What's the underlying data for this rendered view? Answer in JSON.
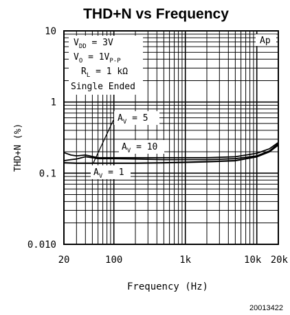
{
  "chart_data": {
    "type": "line",
    "title": "THD+N vs Frequency",
    "xlabel": "Frequency (Hz)",
    "ylabel": "THD+N (%)",
    "x_scale": "log",
    "y_scale": "log",
    "xlim": [
      20,
      20000
    ],
    "ylim": [
      0.01,
      10
    ],
    "grid": true,
    "x_tick_labels": [
      {
        "value": 20,
        "label": "20"
      },
      {
        "value": 100,
        "label": "100"
      },
      {
        "value": 1000,
        "label": "1k"
      },
      {
        "value": 10000,
        "label": "10k"
      },
      {
        "value": 20000,
        "label": "20k"
      }
    ],
    "y_tick_labels": [
      {
        "value": 10,
        "label": "10"
      },
      {
        "value": 1,
        "label": "1"
      },
      {
        "value": 0.1,
        "label": "0.1"
      },
      {
        "value": 0.01,
        "label": "0.010"
      }
    ],
    "conditions": {
      "vdd": "V",
      "vdd_sub": "DD",
      "vdd_value": " = 3V",
      "vo": "V",
      "vo_sub": "O",
      "vo_value": " = 1V",
      "vo_unit_sub": "P-P",
      "rl": "R",
      "rl_sub": "L",
      "rl_value": " = 1 kΩ",
      "mode": "Single Ended"
    },
    "corner_label": "Ap",
    "series": [
      {
        "label": "A",
        "label_sub": "V",
        "label_value": " = 5",
        "x": [
          20,
          25,
          30,
          40,
          60,
          100,
          200,
          500,
          1000,
          2000,
          5000,
          10000,
          15000,
          20000
        ],
        "y": [
          0.195,
          0.18,
          0.175,
          0.18,
          0.165,
          0.165,
          0.165,
          0.165,
          0.165,
          0.165,
          0.17,
          0.19,
          0.22,
          0.27
        ]
      },
      {
        "label": "A",
        "label_sub": "V",
        "label_value": " = 10",
        "x": [
          20,
          25,
          30,
          40,
          50,
          60,
          100,
          200,
          500,
          1000,
          2000,
          5000,
          10000,
          15000,
          20000
        ],
        "y": [
          0.15,
          0.155,
          0.158,
          0.17,
          0.165,
          0.16,
          0.16,
          0.158,
          0.155,
          0.155,
          0.155,
          0.16,
          0.175,
          0.205,
          0.26
        ]
      },
      {
        "label": "A",
        "label_sub": "V",
        "label_value": " = 1",
        "x": [
          20,
          30,
          50,
          100,
          200,
          500,
          1000,
          2000,
          5000,
          10000,
          15000,
          20000
        ],
        "y": [
          0.14,
          0.138,
          0.138,
          0.138,
          0.138,
          0.14,
          0.142,
          0.145,
          0.15,
          0.17,
          0.2,
          0.25
        ]
      }
    ],
    "figure_id": "20013422"
  }
}
